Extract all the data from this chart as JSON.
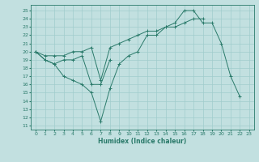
{
  "xlabel": "Humidex (Indice chaleur)",
  "background_color": "#c2e0e0",
  "grid_color": "#a0cccc",
  "line_color": "#2a7a6a",
  "xlim": [
    -0.5,
    23.5
  ],
  "ylim": [
    10.5,
    25.7
  ],
  "xticks": [
    0,
    1,
    2,
    3,
    4,
    5,
    6,
    7,
    8,
    9,
    10,
    11,
    12,
    13,
    14,
    15,
    16,
    17,
    18,
    19,
    20,
    21,
    22,
    23
  ],
  "yticks": [
    11,
    12,
    13,
    14,
    15,
    16,
    17,
    18,
    19,
    20,
    21,
    22,
    23,
    24,
    25
  ],
  "line1_x": [
    0,
    1,
    2,
    3,
    4,
    5,
    6,
    7,
    8,
    9,
    10,
    11,
    12,
    13,
    14,
    15,
    16,
    17,
    18,
    19,
    20,
    21,
    22
  ],
  "line1_y": [
    20.0,
    19.0,
    18.5,
    17.0,
    16.5,
    16.0,
    15.0,
    11.5,
    15.5,
    18.5,
    19.5,
    20.0,
    22.0,
    22.0,
    23.0,
    23.5,
    25.0,
    25.0,
    23.5,
    23.5,
    21.0,
    17.0,
    14.5
  ],
  "line2_x": [
    0,
    1,
    2,
    3,
    4,
    5,
    6,
    7,
    8
  ],
  "line2_y": [
    20.0,
    19.0,
    18.5,
    19.0,
    19.0,
    19.5,
    16.0,
    16.0,
    19.0
  ],
  "line3_x": [
    0,
    1,
    2,
    3,
    4,
    5,
    6,
    7,
    8,
    9,
    10,
    11,
    12,
    13,
    14,
    15,
    16,
    17,
    18
  ],
  "line3_y": [
    20.0,
    19.5,
    19.5,
    19.5,
    20.0,
    20.0,
    20.5,
    16.5,
    20.5,
    21.0,
    21.5,
    22.0,
    22.5,
    22.5,
    23.0,
    23.0,
    23.5,
    24.0,
    24.0
  ]
}
